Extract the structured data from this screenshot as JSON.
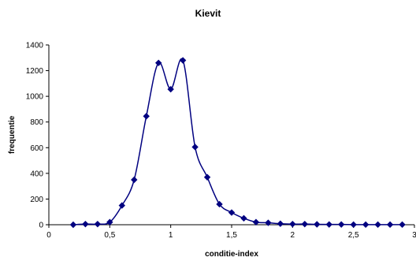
{
  "chart_data": {
    "type": "line",
    "title": "Kievit",
    "xlabel": "conditie-index",
    "ylabel": "frequentie",
    "xlim": [
      0,
      3
    ],
    "ylim": [
      0,
      1400
    ],
    "x_ticks": [
      "0",
      "0,5",
      "1",
      "1,5",
      "2",
      "2,5",
      "3"
    ],
    "y_ticks": [
      "0",
      "200",
      "400",
      "600",
      "800",
      "1000",
      "1200",
      "1400"
    ],
    "grid": false,
    "legend": "none",
    "series": [
      {
        "color": "#000080",
        "marker": "diamond",
        "smooth": true,
        "x": [
          0.2,
          0.3,
          0.4,
          0.5,
          0.6,
          0.7,
          0.8,
          0.9,
          1.0,
          1.1,
          1.2,
          1.3,
          1.4,
          1.5,
          1.6,
          1.7,
          1.8,
          1.9,
          2.0,
          2.1,
          2.2,
          2.3,
          2.4,
          2.5,
          2.6,
          2.7,
          2.8,
          2.9
        ],
        "values": [
          0,
          5,
          5,
          20,
          150,
          350,
          845,
          1260,
          1055,
          1280,
          605,
          370,
          160,
          95,
          50,
          20,
          15,
          8,
          5,
          5,
          3,
          2,
          2,
          1,
          1,
          1,
          1,
          1
        ]
      }
    ]
  }
}
